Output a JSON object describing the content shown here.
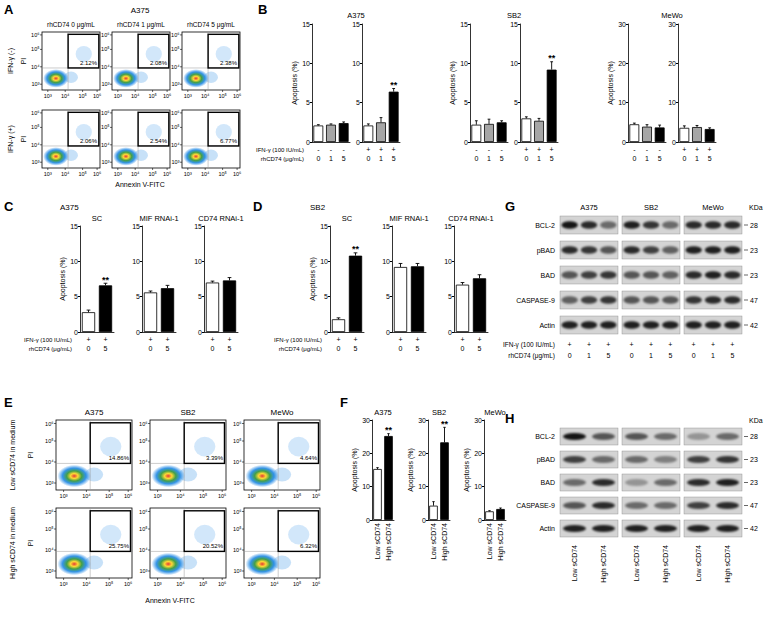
{
  "panel_letters": [
    "A",
    "B",
    "C",
    "D",
    "E",
    "F",
    "G",
    "H"
  ],
  "panels": {
    "B": {
      "row_labels": [
        "IFN-γ (100 IU/mL)",
        "rhCD74 (μg/mL)"
      ]
    },
    "C": {
      "title": "A375",
      "row_labels": [
        "IFN-γ (100 IU/mL)",
        "rhCD74 (μg/mL)"
      ]
    },
    "D": {
      "title": "SB2",
      "row_labels": [
        "IFN-γ (100 IU/mL)",
        "rhCD74 (μg/mL)"
      ]
    }
  },
  "flow": {
    "A": {
      "title": "A375",
      "column_labels": [
        "rhCD74 0 μg/mL",
        "rhCD74 1 μg/mL",
        "rhCD74 5 μg/mL"
      ],
      "row_labels": [
        "IFN-γ (-)",
        "IFN-γ (+)"
      ],
      "percentages": [
        [
          "2.12%",
          "2.08%",
          "2.38%"
        ],
        [
          "2.06%",
          "2.54%",
          "6.77%"
        ]
      ],
      "x_label": "Annexin V-FITC",
      "y_label": "PI",
      "ticks": [
        "10³",
        "10⁴",
        "10⁵",
        "10⁶"
      ]
    },
    "E": {
      "column_labels": [
        "A375",
        "SB2",
        "MeWo"
      ],
      "row_labels": [
        "Low sCD74 in medium",
        "High sCD74 in medium"
      ],
      "percentages": [
        [
          "14.86%",
          "3.39%",
          "4.64%"
        ],
        [
          "25.75%",
          "20.52%",
          "6.32%"
        ]
      ],
      "x_label": "Annexin V-FITC",
      "y_label": "PI",
      "ticks": [
        "10³",
        "10⁴",
        "10⁵",
        "10⁶"
      ]
    }
  },
  "chart_data": [
    {
      "type": "bar",
      "title": "A375",
      "y_label": "Apoptosis (%)",
      "categories": [
        "0",
        "1",
        "5"
      ],
      "ifn_row": [
        "-",
        "-",
        "-"
      ],
      "values": [
        2.1,
        2.2,
        2.4
      ],
      "errors": [
        0.1,
        0.1,
        0.15
      ],
      "colors": [
        "#ffffff",
        "#a6a6a6",
        "#000000"
      ],
      "ylim": [
        0,
        15
      ],
      "yticks": [
        0,
        5,
        10,
        15
      ]
    },
    {
      "type": "bar",
      "categories": [
        "0",
        "1",
        "5"
      ],
      "ifn_row": [
        "+",
        "+",
        "+"
      ],
      "values": [
        2.1,
        2.5,
        6.4
      ],
      "errors": [
        0.2,
        0.6,
        0.4
      ],
      "significance": [
        null,
        null,
        "**"
      ],
      "colors": [
        "#ffffff",
        "#a6a6a6",
        "#000000"
      ],
      "ylim": [
        0,
        15
      ],
      "yticks": [
        0,
        5,
        10,
        15
      ]
    },
    {
      "type": "bar",
      "title": "SB2",
      "y_label": "Apoptosis (%)",
      "categories": [
        "0",
        "1",
        "5"
      ],
      "ifn_row": [
        "-",
        "-",
        "-"
      ],
      "values": [
        2.2,
        2.3,
        2.5
      ],
      "errors": [
        0.5,
        0.6,
        0.2
      ],
      "colors": [
        "#ffffff",
        "#a6a6a6",
        "#000000"
      ],
      "ylim": [
        0,
        15
      ],
      "yticks": [
        0,
        5,
        10,
        15
      ]
    },
    {
      "type": "bar",
      "categories": [
        "0",
        "1",
        "5"
      ],
      "ifn_row": [
        "+",
        "+",
        "+"
      ],
      "values": [
        3.0,
        2.7,
        9.2
      ],
      "errors": [
        0.2,
        0.3,
        1.0
      ],
      "significance": [
        null,
        null,
        "**"
      ],
      "colors": [
        "#ffffff",
        "#a6a6a6",
        "#000000"
      ],
      "ylim": [
        0,
        15
      ],
      "yticks": [
        0,
        5,
        10,
        15
      ]
    },
    {
      "type": "bar",
      "title": "MeWo",
      "y_label": "Apoptosis (%)",
      "categories": [
        "0",
        "1",
        "5"
      ],
      "ifn_row": [
        "-",
        "-",
        "-"
      ],
      "values": [
        4.5,
        3.9,
        3.7
      ],
      "errors": [
        0.3,
        0.5,
        0.6
      ],
      "colors": [
        "#ffffff",
        "#a6a6a6",
        "#000000"
      ],
      "ylim": [
        0,
        30
      ],
      "yticks": [
        0,
        10,
        20,
        30
      ]
    },
    {
      "type": "bar",
      "categories": [
        "0",
        "1",
        "5"
      ],
      "ifn_row": [
        "+",
        "+",
        "+"
      ],
      "values": [
        3.6,
        3.8,
        3.3
      ],
      "errors": [
        0.5,
        0.4,
        0.3
      ],
      "colors": [
        "#ffffff",
        "#a6a6a6",
        "#000000"
      ],
      "ylim": [
        0,
        30
      ],
      "yticks": [
        0,
        10,
        20,
        30
      ]
    },
    {
      "type": "bar",
      "title": "SC",
      "y_label": "Apoptosis (%)",
      "categories": [
        "0",
        "5"
      ],
      "ifn_row": [
        "+",
        "+"
      ],
      "values": [
        2.8,
        6.6
      ],
      "errors": [
        0.3,
        0.3
      ],
      "significance": [
        null,
        "**"
      ],
      "colors": [
        "#ffffff",
        "#000000"
      ],
      "ylim": [
        0,
        15
      ],
      "yticks": [
        0,
        5,
        10,
        15
      ]
    },
    {
      "type": "bar",
      "title": "MIF RNAi-1",
      "categories": [
        "0",
        "5"
      ],
      "ifn_row": [
        "+",
        "+"
      ],
      "values": [
        5.6,
        6.2
      ],
      "errors": [
        0.2,
        0.4
      ],
      "colors": [
        "#ffffff",
        "#000000"
      ],
      "ylim": [
        0,
        15
      ],
      "yticks": [
        0,
        5,
        10,
        15
      ]
    },
    {
      "type": "bar",
      "title": "CD74 RNAi-1",
      "categories": [
        "0",
        "5"
      ],
      "ifn_row": [
        "+",
        "+"
      ],
      "values": [
        7.0,
        7.3
      ],
      "errors": [
        0.2,
        0.4
      ],
      "colors": [
        "#ffffff",
        "#000000"
      ],
      "ylim": [
        0,
        15
      ],
      "yticks": [
        0,
        5,
        10,
        15
      ]
    },
    {
      "type": "bar",
      "title": "SC",
      "y_label": "Apoptosis (%)",
      "categories": [
        "0",
        "5"
      ],
      "ifn_row": [
        "+",
        "+"
      ],
      "values": [
        1.8,
        10.8
      ],
      "errors": [
        0.2,
        0.4
      ],
      "significance": [
        null,
        "**"
      ],
      "colors": [
        "#ffffff",
        "#000000"
      ],
      "ylim": [
        0,
        15
      ],
      "yticks": [
        0,
        5,
        10,
        15
      ]
    },
    {
      "type": "bar",
      "title": "MIF RNAi-1",
      "categories": [
        "0",
        "5"
      ],
      "ifn_row": [
        "+",
        "+"
      ],
      "values": [
        9.2,
        9.3
      ],
      "errors": [
        0.5,
        0.4
      ],
      "colors": [
        "#ffffff",
        "#000000"
      ],
      "ylim": [
        0,
        15
      ],
      "yticks": [
        0,
        5,
        10,
        15
      ]
    },
    {
      "type": "bar",
      "title": "CD74 RNAi-1",
      "categories": [
        "0",
        "5"
      ],
      "ifn_row": [
        "+",
        "+"
      ],
      "values": [
        6.7,
        7.6
      ],
      "errors": [
        0.3,
        0.5
      ],
      "colors": [
        "#ffffff",
        "#000000"
      ],
      "ylim": [
        0,
        15
      ],
      "yticks": [
        0,
        5,
        10,
        15
      ]
    },
    {
      "type": "bar",
      "title": "A375",
      "y_label": "Apoptosis (%)",
      "categories": [
        "Low sCD74",
        "High sCD74"
      ],
      "values": [
        15.3,
        25.2
      ],
      "errors": [
        0.4,
        0.7
      ],
      "significance": [
        null,
        "**"
      ],
      "colors": [
        "#ffffff",
        "#000000"
      ],
      "ylim": [
        0,
        30
      ],
      "yticks": [
        0,
        10,
        20,
        30
      ]
    },
    {
      "type": "bar",
      "title": "SB2",
      "y_label": "Apoptosis (%)",
      "categories": [
        "Low sCD74",
        "High sCD74"
      ],
      "values": [
        4.3,
        23.3
      ],
      "errors": [
        1.2,
        4.5
      ],
      "significance": [
        null,
        "**"
      ],
      "colors": [
        "#ffffff",
        "#000000"
      ],
      "ylim": [
        0,
        30
      ],
      "yticks": [
        0,
        10,
        20,
        30
      ]
    },
    {
      "type": "bar",
      "title": "MeWo",
      "y_label": "Apoptosis (%)",
      "categories": [
        "Low sCD74",
        "High sCD74"
      ],
      "values": [
        2.6,
        3.3
      ],
      "errors": [
        0.2,
        0.3
      ],
      "colors": [
        "#ffffff",
        "#000000"
      ],
      "ylim": [
        0,
        30
      ],
      "yticks": [
        0,
        10,
        20,
        30
      ]
    }
  ],
  "blots": {
    "G": {
      "groups": [
        "A375",
        "SB2",
        "MeWo"
      ],
      "proteins": [
        "BCL-2",
        "pBAD",
        "BAD",
        "CASPASE-9",
        "Actin"
      ],
      "kda_label": "KDa",
      "kda": [
        "28",
        "23",
        "23",
        "47",
        "42"
      ],
      "lane_rows": [
        {
          "label": "IFN-γ (100 IU/mL)",
          "lanes": [
            "+",
            "+",
            "+",
            "+",
            "+",
            "+",
            "+",
            "+",
            "+"
          ]
        },
        {
          "label": "rhCD74 (μg/mL)",
          "lanes": [
            "0",
            "1",
            "5",
            "0",
            "1",
            "5",
            "0",
            "1",
            "5"
          ]
        }
      ],
      "band_intensity": [
        [
          0.9,
          0.8,
          0.5,
          0.85,
          0.75,
          0.5,
          0.8,
          0.8,
          0.8
        ],
        [
          0.8,
          0.75,
          0.6,
          0.8,
          0.7,
          0.55,
          0.85,
          0.85,
          0.85
        ],
        [
          0.6,
          0.7,
          0.75,
          0.6,
          0.6,
          0.55,
          0.8,
          0.85,
          0.8
        ],
        [
          0.55,
          0.7,
          0.75,
          0.6,
          0.6,
          0.6,
          0.75,
          0.8,
          0.8
        ],
        [
          0.85,
          0.85,
          0.85,
          0.85,
          0.85,
          0.85,
          0.85,
          0.85,
          0.85
        ]
      ]
    },
    "H": {
      "proteins": [
        "BCL-2",
        "pBAD",
        "BAD",
        "CASPASE-9",
        "Actin"
      ],
      "kda_label": "KDa",
      "kda": [
        "28",
        "23",
        "23",
        "47",
        "42"
      ],
      "lane_labels": [
        "Low sCD74",
        "High sCD74",
        "Low sCD74",
        "High sCD74",
        "Low sCD74",
        "High sCD74"
      ],
      "band_intensity": [
        [
          0.9,
          0.6,
          0.6,
          0.5,
          0.3,
          0.5
        ],
        [
          0.7,
          0.5,
          0.5,
          0.4,
          0.7,
          0.75
        ],
        [
          0.5,
          0.8,
          0.3,
          0.5,
          0.8,
          0.85
        ],
        [
          0.6,
          0.8,
          0.5,
          0.5,
          0.7,
          0.8
        ],
        [
          0.85,
          0.85,
          0.85,
          0.85,
          0.85,
          0.85
        ]
      ]
    }
  }
}
